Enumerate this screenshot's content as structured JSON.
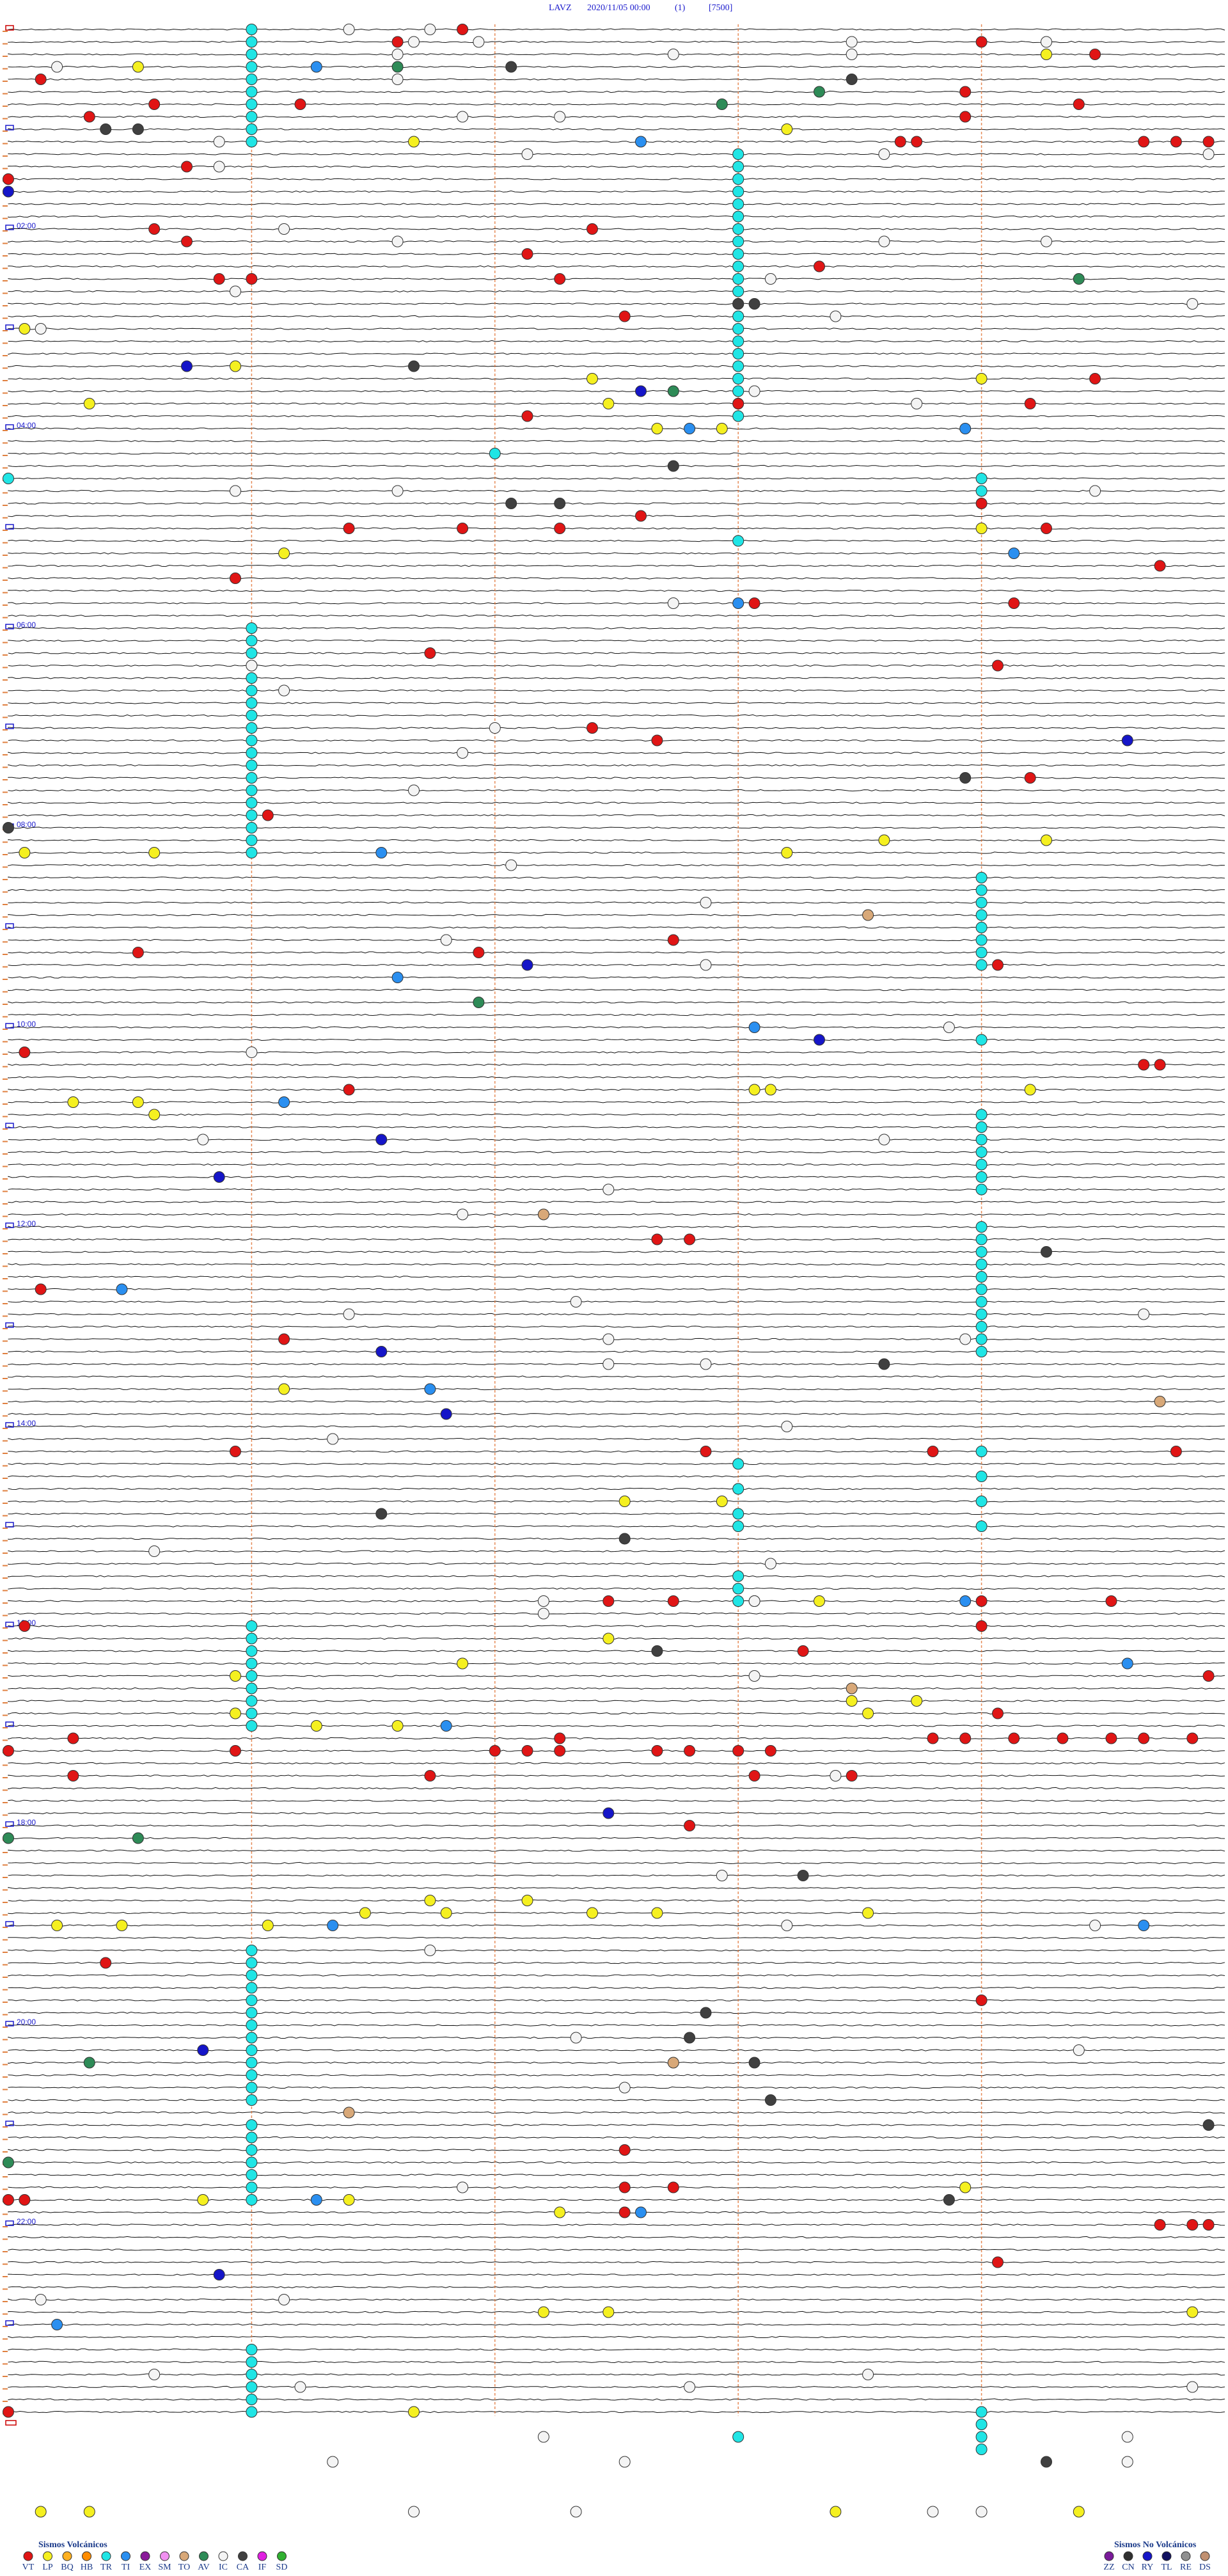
{
  "header": {
    "station": "LAVZ",
    "datetime": "2020/11/05 00:00",
    "index": "(1)",
    "scale": "[7500]"
  },
  "hour_labels": [
    "02:00",
    "04:00",
    "06:00",
    "08:00",
    "10:00",
    "12:00",
    "14:00",
    "16:00",
    "18:00",
    "20:00",
    "22:00"
  ],
  "events": {
    "TR": [
      1.5,
      9,
      16.5,
      24,
      31.5,
      39,
      46.5,
      54,
      61.5,
      69,
      79.5,
      87,
      94.5,
      102,
      109.5,
      117,
      124.5,
      132,
      139.5,
      147,
      154.5,
      162,
      169.5,
      177,
      184.5,
      192,
      199.5,
      207,
      214.5,
      222,
      229.5,
      237,
      361.5,
      369,
      376.5,
      384,
      391.5,
      399,
      406.5,
      414,
      421.5,
      429,
      436.5,
      444,
      451.5,
      459,
      466.5,
      474,
      481.5,
      489,
      496.5,
      516,
      523.5,
      531,
      538.5,
      546,
      553.5,
      561,
      568.5,
      658.5,
      666,
      673.5,
      681,
      688.5,
      696,
      703.5,
      726,
      733.5,
      741,
      748.5,
      756,
      763.5,
      771,
      778.5,
      786,
      793.5,
      801,
      961.5,
      969,
      976.5,
      984,
      991.5,
      999,
      1006.5,
      1014,
      1021.5,
      1156.5,
      1164,
      1171.5,
      1179,
      1186.5,
      1194,
      1201.5,
      1209,
      1216.5,
      1224,
      1231.5,
      1239,
      1246.5,
      1261.5,
      1269,
      1276.5,
      1284,
      1291.5,
      1299,
      1306.5,
      1396.5,
      1404,
      1411.5,
      1419,
      1426.5,
      1434,
      867,
      882,
      897,
      904.5,
      934.5,
      942,
      949.5,
      861,
      876,
      891,
      906,
      258,
      270,
      276,
      283.5,
      312,
      613.5,
      1452,
      1438.5,
      1446,
      1453.5,
      1461
    ],
    "VT": [
      2.8,
      9.9,
      13.5,
      30.2,
      53,
      45.9,
      46.8,
      51.6,
      43.4,
      58.4,
      21.7,
      73.0,
      73.1,
      74.5,
      74.7,
      74.9,
      83.6,
      90.0,
      120.9,
      128.6,
      151.3,
      151.5,
      123.6,
      138.2,
      153.4,
      147.5,
      176.3,
      231.3,
      216.7,
      229.5,
      235.7,
      302.1,
      302.8,
      303.4,
      296.4,
      291.0,
      306.4,
      329.6,
      331.4,
      349.6,
      351.2,
      377.6,
      388.6,
      423.6,
      431.5,
      456.3,
      474.1,
      568.6,
      555.8,
      557.9,
      551.6,
      615.1,
      639.6,
      629.5,
      629.6,
      731.5,
      731.7,
      757.7,
      789.2,
      859.3,
      860.7,
      862.2,
      856.4,
      948.7,
      951,
      949.1,
      960.1,
      951.8,
      966,
      979.9,
      997.4,
      1035,
      1027.9,
      1018.6,
      1033.2,
      1033.4,
      1033.7,
      1034.0,
      1034.3,
      1034.5,
      1034.8,
      1036.4,
      1038,
      1030.9,
      1038.2,
      1038.4,
      1039,
      1039.2,
      1039.5,
      1039.7,
      1050.4,
      1052.6,
      1054.6,
      1055.2,
      1084.2,
      1163.1,
      1191,
      1278.8,
      1301.3,
      1316.3,
      1301.6,
      1327.1,
      1327.3,
      1327.4,
      1348.6,
      1305,
      1305.1,
      1432.5
    ],
    "LP": [
      23.3,
      70.0,
      64.8,
      21.4,
      180.1,
      203.9,
      213.6,
      228.7,
      244,
      244.4,
      216,
      225.5,
      316.7,
      306.0,
      495.1,
      495.9,
      499.8,
      492.9,
      493.9,
      645.4,
      645.8,
      653.4,
      642.1,
      642.2,
      643.8,
      819.2,
      888.8,
      889.4,
      985.3,
      949.6,
      950.0,
      971.2,
      991.4,
      1013.9,
      1021.9,
      1022.4,
      1010.2,
      1017.8,
      1010.6,
      1128.2,
      1140.3,
      1140.7,
      1141.6,
      1134.7,
      1135.2,
      1136.1,
      1136.5,
      1137.8,
      1127.6,
      1306.2,
      1307.1,
      1303.4,
      1315.9,
      1375.8,
      1376.2,
      1379.8,
      1435.0,
      1492.7,
      1493.0,
      1497.6,
      1499.1
    ],
    "TI": [
      24.4,
      71.4,
      497.3,
      572.4,
      604.6,
      646.7,
      758.2,
      820.1,
      989.4,
      1022.7,
      1306.9,
      1316.4,
      1142.0,
      1147,
      950.9,
      321.2,
      349.5,
      244.2,
      245.9,
      1380.3
    ],
    "RY": [
      97.5,
      203.6,
      221.4,
      434.4,
      565.7,
      612.5,
      669.8,
      691.3,
      797.3,
      835.2,
      1076.2,
      1216.2,
      1351.3
    ],
    "AV": [
      24.9,
      42.5,
      49.4,
      221.6,
      156.6,
      587.9,
      1087.5,
      1088.3,
      1282.5,
      1223.0
    ],
    "CA": [
      25.6,
      35.2,
      60.6,
      60.8,
      169.5,
      169.6,
      205.0,
      266.6,
      288.1,
      288.4,
      480.0,
      455.9,
      741.4,
      807.9,
      894.8,
      911.3,
      979,
      1114.9,
      1196.8,
      1211.7,
      1227.1,
      1249.7,
      1267.4,
      1310.8,
      1468.9
    ],
    "TO": [
      832.1,
      537.8,
      1254.6,
      1002.7,
      1226.6,
      715.8
    ],
    "IC": [
      2.1,
      2.6,
      10.0,
      22.8,
      17.4,
      10.4,
      19.1,
      12.7,
      20.2,
      13.9,
      68.8,
      32.4,
      55.3,
      55.9,
      83.8,
      78.2,
      80.4,
      82.4,
      121.7,
      129.9,
      132.9,
      133.9,
      180.2,
      158.9,
      154.7,
      177.6,
      172.3,
      222.1,
      230.6,
      278.9,
      279.9,
      284.2,
      349.1,
      384.0,
      399.2,
      423.0,
      460.0,
      437.8,
      505.6,
      529.3,
      550.2,
      566.8,
      616.5,
      605.8,
      668.7,
      672.9,
      715.3,
      701.2,
      768.5,
      791.2,
      774.6,
      806.2,
      806.8,
      793.4,
      779.5,
      849.5,
      844.8,
      915.9,
      948.3,
      949.6,
      955.8,
      927.2,
      994.6,
      1055.1,
      1114.4,
      1144.8,
      1146.7,
      1157.6,
      1211.0,
      1221.6,
      1241.3,
      1300.3,
      1366.7,
      1365.2,
      1410.9,
      1419.3,
      1421.7,
      1415.3,
      1424.8,
      1450.8,
      1464.5,
      1495,
      1496.0,
      1498.2,
      1498.5,
      1454.4,
      1469.4,
      1466.3
    ]
  },
  "legend": {
    "volcanic": {
      "title": "Sismos Volcánicos",
      "items": [
        {
          "code": "VT",
          "color": "#e01515"
        },
        {
          "code": "LP",
          "color": "#f5f020"
        },
        {
          "code": "BQ",
          "color": "#ffb020"
        },
        {
          "code": "HB",
          "color": "#ff8c00"
        },
        {
          "code": "TR",
          "color": "#20e5e5"
        },
        {
          "code": "TI",
          "color": "#2a8ff0"
        },
        {
          "code": "EX",
          "color": "#8a1a9a"
        },
        {
          "code": "SM",
          "color": "#f090f0"
        },
        {
          "code": "TO",
          "color": "#d8a878"
        },
        {
          "code": "AV",
          "color": "#2e8b57"
        },
        {
          "code": "IC",
          "color": "#f4f4f4"
        },
        {
          "code": "CA",
          "color": "#404040"
        },
        {
          "code": "IF",
          "color": "#e020e0"
        },
        {
          "code": "SD",
          "color": "#30b030"
        }
      ]
    },
    "non_volcanic": {
      "title": "Sismos No Volcánicos",
      "items": [
        {
          "code": "ZZ",
          "color": "#7a1a9a"
        },
        {
          "code": "CN",
          "color": "#303030"
        },
        {
          "code": "RY",
          "color": "#1515c8"
        },
        {
          "code": "TL",
          "color": "#101060"
        },
        {
          "code": "RE",
          "color": "#909090"
        },
        {
          "code": "DS",
          "color": "#c09070"
        }
      ]
    }
  }
}
